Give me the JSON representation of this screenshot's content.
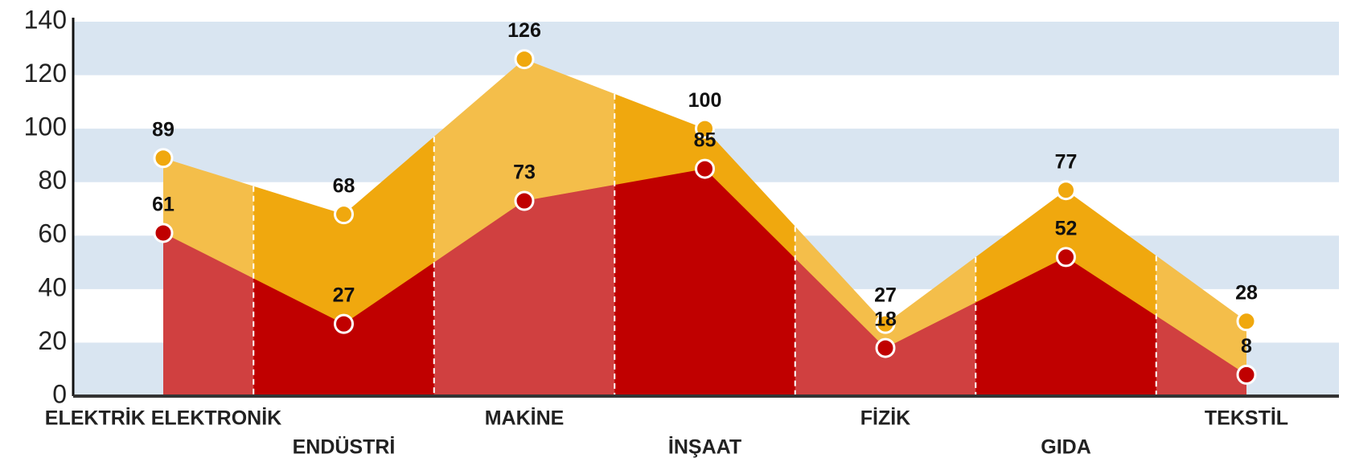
{
  "chart_data": {
    "type": "area",
    "categories": [
      "ELEKTRİK ELEKTRONİK",
      "ENDÜSTRİ",
      "MAKİNE",
      "İNŞAAT",
      "FİZİK",
      "GIDA",
      "TEKSTİL"
    ],
    "series": [
      {
        "color": "#f0a80e",
        "values": [
          89,
          68,
          126,
          100,
          27,
          77,
          28
        ]
      },
      {
        "color": "#c00000",
        "values": [
          61,
          27,
          73,
          85,
          18,
          52,
          8
        ]
      }
    ],
    "ylim": [
      0,
      140
    ],
    "yticks": [
      0,
      20,
      40,
      60,
      80,
      100,
      120,
      140
    ],
    "grid": "bands",
    "band_color": "#d9e5f1"
  }
}
